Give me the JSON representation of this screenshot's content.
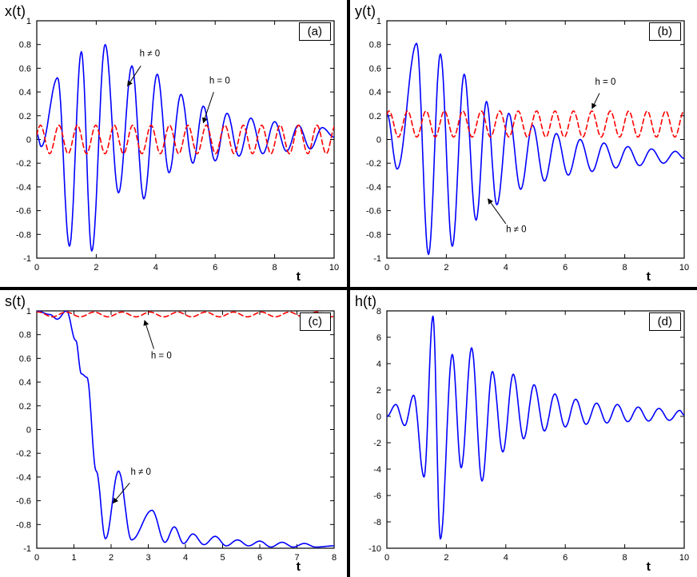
{
  "colors": {
    "blue_series": "#0000ff",
    "red_series": "#ff0000",
    "axis": "#000000",
    "background": "#ffffff",
    "divider": "#000000"
  },
  "chart_data": [
    {
      "id": "a",
      "type": "line",
      "tag": "(a)",
      "ylabel": "x(t)",
      "xlabel": "t",
      "x_range": [
        0,
        10
      ],
      "y_range": [
        -1,
        1
      ],
      "x_ticks": [
        0,
        2,
        4,
        6,
        8,
        10
      ],
      "x_tick_labels": [
        "0",
        "2",
        "4",
        "6",
        "8",
        "10"
      ],
      "y_ticks": [
        -1,
        -0.8,
        -0.6,
        -0.4,
        -0.2,
        0,
        0.2,
        0.4,
        0.6,
        0.8,
        1
      ],
      "y_tick_labels": [
        "-1",
        "-0.8",
        "-0.6",
        "-0.4",
        "-0.2",
        "0",
        "0.2",
        "0.4",
        "0.6",
        "0.8",
        "1"
      ],
      "grid": false,
      "series": [
        {
          "name": "h ≠ 0",
          "color": "#0000ff",
          "style": "solid",
          "keypoints": [
            [
              0,
              0.05
            ],
            [
              0.15,
              -0.06
            ],
            [
              0.7,
              0.52
            ],
            [
              1.1,
              -0.9
            ],
            [
              1.5,
              0.74
            ],
            [
              1.85,
              -0.94
            ],
            [
              2.3,
              0.8
            ],
            [
              2.75,
              -0.45
            ],
            [
              3.2,
              0.62
            ],
            [
              3.6,
              -0.5
            ],
            [
              4.05,
              0.55
            ],
            [
              4.45,
              -0.28
            ],
            [
              4.85,
              0.38
            ],
            [
              5.25,
              -0.2
            ],
            [
              5.6,
              0.28
            ],
            [
              6.0,
              -0.18
            ],
            [
              6.4,
              0.22
            ],
            [
              6.8,
              -0.14
            ],
            [
              7.2,
              0.18
            ],
            [
              7.6,
              -0.12
            ],
            [
              8.0,
              0.15
            ],
            [
              8.4,
              -0.1
            ],
            [
              8.8,
              0.12
            ],
            [
              9.2,
              -0.08
            ],
            [
              9.6,
              0.1
            ],
            [
              10,
              0.02
            ]
          ]
        },
        {
          "name": "h = 0",
          "color": "#ff0000",
          "style": "dashed",
          "sine": {
            "mean": 0,
            "amplitude": 0.12,
            "period": 0.62,
            "phase": 0.3
          }
        }
      ],
      "annotations": [
        {
          "text": "h ≠ 0",
          "text_at": [
            3.8,
            0.7
          ],
          "arrow_from": [
            3.5,
            0.62
          ],
          "arrow_to": [
            3.05,
            0.45
          ]
        },
        {
          "text": "h = 0",
          "text_at": [
            6.15,
            0.47
          ],
          "arrow_from": [
            5.95,
            0.4
          ],
          "arrow_to": [
            5.6,
            0.14
          ]
        }
      ]
    },
    {
      "id": "b",
      "type": "line",
      "tag": "(b)",
      "ylabel": "y(t)",
      "xlabel": "t",
      "x_range": [
        0,
        10
      ],
      "y_range": [
        -1,
        1
      ],
      "x_ticks": [
        0,
        2,
        4,
        6,
        8,
        10
      ],
      "x_tick_labels": [
        "0",
        "2",
        "4",
        "6",
        "8",
        "10"
      ],
      "y_ticks": [
        -1,
        -0.8,
        -0.6,
        -0.4,
        -0.2,
        0,
        0.2,
        0.4,
        0.6,
        0.8,
        1
      ],
      "y_tick_labels": [
        "-1",
        "-0.8",
        "-0.6",
        "-0.4",
        "-0.2",
        "0",
        "0.2",
        "0.4",
        "0.6",
        "0.8",
        "1"
      ],
      "grid": false,
      "series": [
        {
          "name": "h ≠ 0",
          "color": "#0000ff",
          "style": "solid",
          "keypoints": [
            [
              0,
              0.22
            ],
            [
              0.35,
              -0.25
            ],
            [
              1.0,
              0.81
            ],
            [
              1.4,
              -0.97
            ],
            [
              1.8,
              0.72
            ],
            [
              2.2,
              -0.9
            ],
            [
              2.6,
              0.55
            ],
            [
              3.0,
              -0.68
            ],
            [
              3.35,
              0.32
            ],
            [
              3.7,
              -0.55
            ],
            [
              4.1,
              0.22
            ],
            [
              4.5,
              -0.42
            ],
            [
              4.9,
              0.12
            ],
            [
              5.3,
              -0.35
            ],
            [
              5.7,
              0.05
            ],
            [
              6.1,
              -0.3
            ],
            [
              6.5,
              0.0
            ],
            [
              6.9,
              -0.27
            ],
            [
              7.3,
              -0.03
            ],
            [
              7.7,
              -0.24
            ],
            [
              8.1,
              -0.06
            ],
            [
              8.5,
              -0.22
            ],
            [
              8.9,
              -0.08
            ],
            [
              9.3,
              -0.2
            ],
            [
              9.7,
              -0.1
            ],
            [
              10,
              -0.16
            ]
          ]
        },
        {
          "name": "h = 0",
          "color": "#ff0000",
          "style": "dashed",
          "sine": {
            "mean": 0.13,
            "amplitude": 0.11,
            "period": 0.62,
            "phase": 0.8
          }
        }
      ],
      "annotations": [
        {
          "text": "h = 0",
          "text_at": [
            7.35,
            0.46
          ],
          "arrow_from": [
            7.15,
            0.39
          ],
          "arrow_to": [
            6.9,
            0.26
          ]
        },
        {
          "text": "h ≠ 0",
          "text_at": [
            4.35,
            -0.78
          ],
          "arrow_from": [
            4.0,
            -0.71
          ],
          "arrow_to": [
            3.4,
            -0.5
          ]
        }
      ]
    },
    {
      "id": "c",
      "type": "line",
      "tag": "(c)",
      "ylabel": "s(t)",
      "xlabel": "t",
      "x_range": [
        0,
        8
      ],
      "y_range": [
        -1,
        1
      ],
      "x_ticks": [
        0,
        1,
        2,
        3,
        4,
        5,
        6,
        7,
        8
      ],
      "x_tick_labels": [
        "0",
        "1",
        "2",
        "3",
        "4",
        "5",
        "6",
        "7",
        "8"
      ],
      "y_ticks": [
        -1,
        -0.8,
        -0.6,
        -0.4,
        -0.2,
        0,
        0.2,
        0.4,
        0.6,
        0.8,
        1
      ],
      "y_tick_labels": [
        "-1",
        "-0.8",
        "-0.6",
        "-0.4",
        "-0.2",
        "0",
        "0.2",
        "0.4",
        "0.6",
        "0.8",
        "1"
      ],
      "grid": false,
      "series": [
        {
          "name": "h ≠ 0",
          "color": "#0000ff",
          "style": "solid",
          "keypoints": [
            [
              0,
              1.0
            ],
            [
              0.35,
              0.97
            ],
            [
              0.55,
              0.93
            ],
            [
              0.8,
              1.0
            ],
            [
              1.05,
              0.75
            ],
            [
              1.2,
              0.47
            ],
            [
              1.35,
              0.44
            ],
            [
              1.6,
              -0.35
            ],
            [
              1.85,
              -0.92
            ],
            [
              2.2,
              -0.35
            ],
            [
              2.55,
              -0.93
            ],
            [
              3.1,
              -0.68
            ],
            [
              3.45,
              -0.95
            ],
            [
              3.7,
              -0.82
            ],
            [
              3.95,
              -0.96
            ],
            [
              4.2,
              -0.88
            ],
            [
              4.5,
              -0.97
            ],
            [
              4.8,
              -0.9
            ],
            [
              5.1,
              -0.98
            ],
            [
              5.4,
              -0.93
            ],
            [
              5.7,
              -0.98
            ],
            [
              6.0,
              -0.94
            ],
            [
              6.3,
              -0.99
            ],
            [
              6.6,
              -0.95
            ],
            [
              6.9,
              -0.99
            ],
            [
              7.2,
              -0.96
            ],
            [
              7.5,
              -0.99
            ],
            [
              8.0,
              -0.98
            ]
          ]
        },
        {
          "name": "h = 0",
          "color": "#ff0000",
          "style": "dashed",
          "sine": {
            "mean": 0.97,
            "amplitude": 0.02,
            "period": 0.75,
            "phase": 1.2
          }
        }
      ],
      "annotations": [
        {
          "text": "h = 0",
          "text_at": [
            3.35,
            0.6
          ],
          "arrow_from": [
            3.15,
            0.68
          ],
          "arrow_to": [
            2.9,
            0.92
          ]
        },
        {
          "text": "h ≠ 0",
          "text_at": [
            2.8,
            -0.38
          ],
          "arrow_from": [
            2.5,
            -0.45
          ],
          "arrow_to": [
            2.05,
            -0.62
          ]
        }
      ]
    },
    {
      "id": "d",
      "type": "line",
      "tag": "(d)",
      "ylabel": "h(t)",
      "xlabel": "t",
      "x_range": [
        0,
        10
      ],
      "y_range": [
        -10,
        8
      ],
      "x_ticks": [
        0,
        2,
        4,
        6,
        8,
        10
      ],
      "x_tick_labels": [
        "0",
        "2",
        "4",
        "6",
        "8",
        "10"
      ],
      "y_ticks": [
        -10,
        -8,
        -6,
        -4,
        -2,
        0,
        2,
        4,
        6,
        8
      ],
      "y_tick_labels": [
        "-10",
        "-8",
        "-6",
        "-4",
        "-2",
        "0",
        "2",
        "4",
        "6",
        "8"
      ],
      "grid": false,
      "series": [
        {
          "name": "h(t)",
          "color": "#0000ff",
          "style": "solid",
          "keypoints": [
            [
              0,
              0.0
            ],
            [
              0.3,
              0.9
            ],
            [
              0.6,
              -0.7
            ],
            [
              0.9,
              1.6
            ],
            [
              1.25,
              -4.6
            ],
            [
              1.55,
              7.6
            ],
            [
              1.8,
              -9.3
            ],
            [
              2.2,
              4.7
            ],
            [
              2.5,
              -3.9
            ],
            [
              2.85,
              5.2
            ],
            [
              3.2,
              -4.9
            ],
            [
              3.55,
              3.4
            ],
            [
              3.9,
              -2.7
            ],
            [
              4.25,
              3.2
            ],
            [
              4.6,
              -1.7
            ],
            [
              4.95,
              2.4
            ],
            [
              5.3,
              -1.1
            ],
            [
              5.65,
              1.7
            ],
            [
              6.0,
              -0.8
            ],
            [
              6.35,
              1.3
            ],
            [
              6.7,
              -0.6
            ],
            [
              7.05,
              1.0
            ],
            [
              7.4,
              -0.5
            ],
            [
              7.75,
              0.9
            ],
            [
              8.1,
              -0.4
            ],
            [
              8.45,
              0.7
            ],
            [
              8.8,
              -0.35
            ],
            [
              9.15,
              0.6
            ],
            [
              9.5,
              -0.3
            ],
            [
              9.85,
              0.45
            ],
            [
              10,
              0.1
            ]
          ]
        }
      ],
      "annotations": []
    }
  ]
}
